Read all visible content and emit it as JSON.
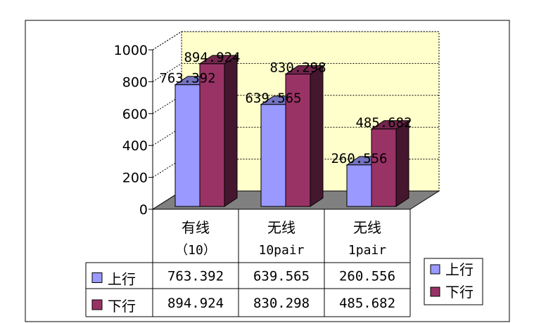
{
  "chart_data": {
    "type": "bar",
    "style": "3d-clustered-column-with-data-table",
    "categories": [
      {
        "line1": "有线",
        "line2": "（10）"
      },
      {
        "line1": "无线",
        "line2": "10pair"
      },
      {
        "line1": "无线",
        "line2": "1pair"
      }
    ],
    "series": [
      {
        "name": "上行",
        "color": "#9999ff",
        "values": [
          763.392,
          639.565,
          260.556
        ],
        "labels": [
          "763.392",
          "639.565",
          "260.556"
        ]
      },
      {
        "name": "下行",
        "color": "#993366",
        "values": [
          894.924,
          830.298,
          485.682
        ],
        "labels": [
          "894.924",
          "830.298",
          "485.682"
        ]
      }
    ],
    "yticks": [
      "0",
      "200",
      "400",
      "600",
      "800",
      "1000"
    ],
    "ylim": [
      0,
      1000
    ],
    "grid": true,
    "legend_position": "right",
    "data_labels": true,
    "data_table": true,
    "colors": {
      "wall": "#ffffcc",
      "floor": "#808080",
      "gridline": "#000000"
    }
  }
}
